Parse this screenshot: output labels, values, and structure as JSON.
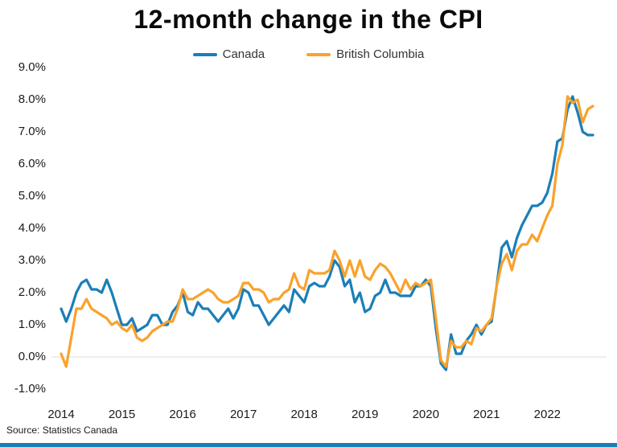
{
  "chart_data": {
    "type": "line",
    "title": "12-month change in the CPI",
    "source": "Source: Statistics Canada",
    "x_unit": "month",
    "x_start": "2014-01",
    "x_end": "2022-10",
    "x_tick_labels": [
      "2014",
      "2015",
      "2016",
      "2017",
      "2018",
      "2019",
      "2020",
      "2021",
      "2022"
    ],
    "y_tick_values": [
      9,
      8,
      7,
      6,
      5,
      4,
      3,
      2,
      1,
      0,
      -1
    ],
    "y_tick_labels": [
      "9.0%",
      "8.0%",
      "7.0%",
      "6.0%",
      "5.0%",
      "4.0%",
      "3.0%",
      "2.0%",
      "1.0%",
      "0.0%",
      "-1.0%"
    ],
    "ylim": [
      -1.0,
      9.0
    ],
    "gridline_values": [
      0
    ],
    "legend_position": "top-center",
    "series": [
      {
        "name": "Canada",
        "color": "#1b7eb8",
        "values": [
          1.5,
          1.1,
          1.5,
          2.0,
          2.3,
          2.4,
          2.1,
          2.1,
          2.0,
          2.4,
          2.0,
          1.5,
          1.0,
          1.0,
          1.2,
          0.8,
          0.9,
          1.0,
          1.3,
          1.3,
          1.0,
          1.0,
          1.4,
          1.6,
          2.0,
          1.4,
          1.3,
          1.7,
          1.5,
          1.5,
          1.3,
          1.1,
          1.3,
          1.5,
          1.2,
          1.5,
          2.1,
          2.0,
          1.6,
          1.6,
          1.3,
          1.0,
          1.2,
          1.4,
          1.6,
          1.4,
          2.1,
          1.9,
          1.7,
          2.2,
          2.3,
          2.2,
          2.2,
          2.5,
          3.0,
          2.8,
          2.2,
          2.4,
          1.7,
          2.0,
          1.4,
          1.5,
          1.9,
          2.0,
          2.4,
          2.0,
          2.0,
          1.9,
          1.9,
          1.9,
          2.2,
          2.2,
          2.4,
          2.2,
          0.9,
          -0.2,
          -0.4,
          0.7,
          0.1,
          0.1,
          0.5,
          0.7,
          1.0,
          0.7,
          1.0,
          1.1,
          2.2,
          3.4,
          3.6,
          3.1,
          3.7,
          4.1,
          4.4,
          4.7,
          4.7,
          4.8,
          5.1,
          5.7,
          6.7,
          6.8,
          7.7,
          8.1,
          7.6,
          7.0,
          6.9,
          6.9
        ]
      },
      {
        "name": "British Columbia",
        "color": "#f9a22b",
        "values": [
          0.1,
          -0.3,
          0.6,
          1.5,
          1.5,
          1.8,
          1.5,
          1.4,
          1.3,
          1.2,
          1.0,
          1.1,
          0.9,
          0.8,
          1.0,
          0.6,
          0.5,
          0.6,
          0.8,
          0.9,
          1.0,
          1.1,
          1.1,
          1.5,
          2.1,
          1.8,
          1.8,
          1.9,
          2.0,
          2.1,
          2.0,
          1.8,
          1.7,
          1.7,
          1.8,
          1.9,
          2.3,
          2.3,
          2.1,
          2.1,
          2.0,
          1.7,
          1.8,
          1.8,
          2.0,
          2.1,
          2.6,
          2.2,
          2.1,
          2.7,
          2.6,
          2.6,
          2.6,
          2.7,
          3.3,
          3.0,
          2.5,
          3.0,
          2.5,
          3.0,
          2.5,
          2.4,
          2.7,
          2.9,
          2.8,
          2.6,
          2.3,
          2.0,
          2.4,
          2.1,
          2.3,
          2.2,
          2.3,
          2.4,
          1.2,
          -0.1,
          -0.3,
          0.5,
          0.3,
          0.3,
          0.5,
          0.4,
          0.9,
          0.8,
          1.0,
          1.2,
          2.2,
          2.9,
          3.2,
          2.7,
          3.3,
          3.5,
          3.5,
          3.8,
          3.6,
          4.0,
          4.4,
          4.7,
          6.0,
          6.6,
          8.1,
          7.9,
          8.0,
          7.3,
          7.7,
          7.8
        ]
      }
    ]
  },
  "colors": {
    "gridline": "#dcdcdc",
    "footer_bar": "#1b7eb8",
    "title_text": "#0a0a0a",
    "tick_text": "#1a1a1a"
  }
}
